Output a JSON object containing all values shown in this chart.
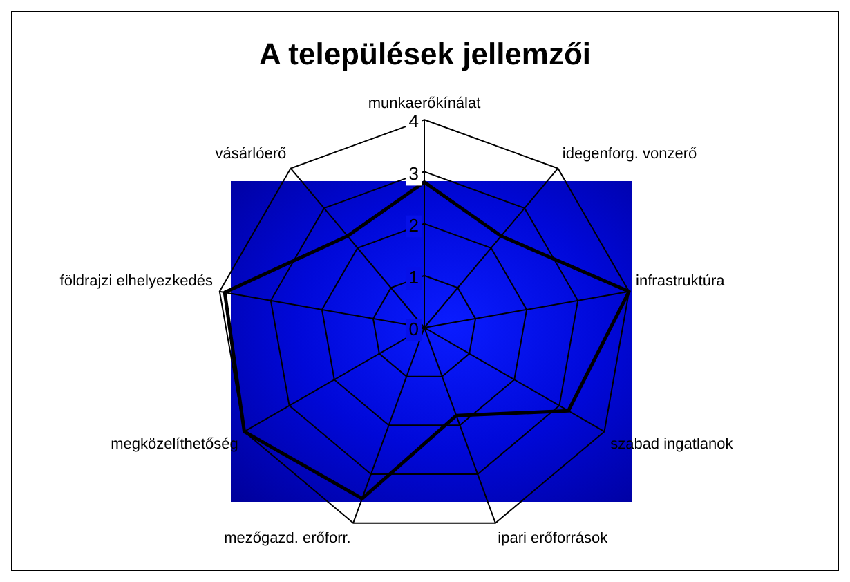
{
  "chart_data": {
    "type": "radar",
    "title": "A települések jellemzői",
    "categories": [
      "munkaerőkínálat",
      "idegenforg. vonzerő",
      "infrastruktúra",
      "szabad ingatlanok",
      "ipari erőforrások",
      "mezőgazd. erőforr.",
      "megközelíthetőség",
      "földrajzi elhelyezkedés",
      "vásárlóerő"
    ],
    "series": [
      {
        "color": "#000000",
        "values": [
          2.8,
          2.3,
          4,
          3.2,
          1.8,
          3.5,
          4,
          3.9,
          2.3
        ]
      }
    ],
    "ylim": [
      0,
      4
    ],
    "yticks": [
      0,
      1,
      2,
      3,
      4
    ],
    "grid": true,
    "legend": false,
    "marker": "none",
    "line_style": "solid"
  }
}
